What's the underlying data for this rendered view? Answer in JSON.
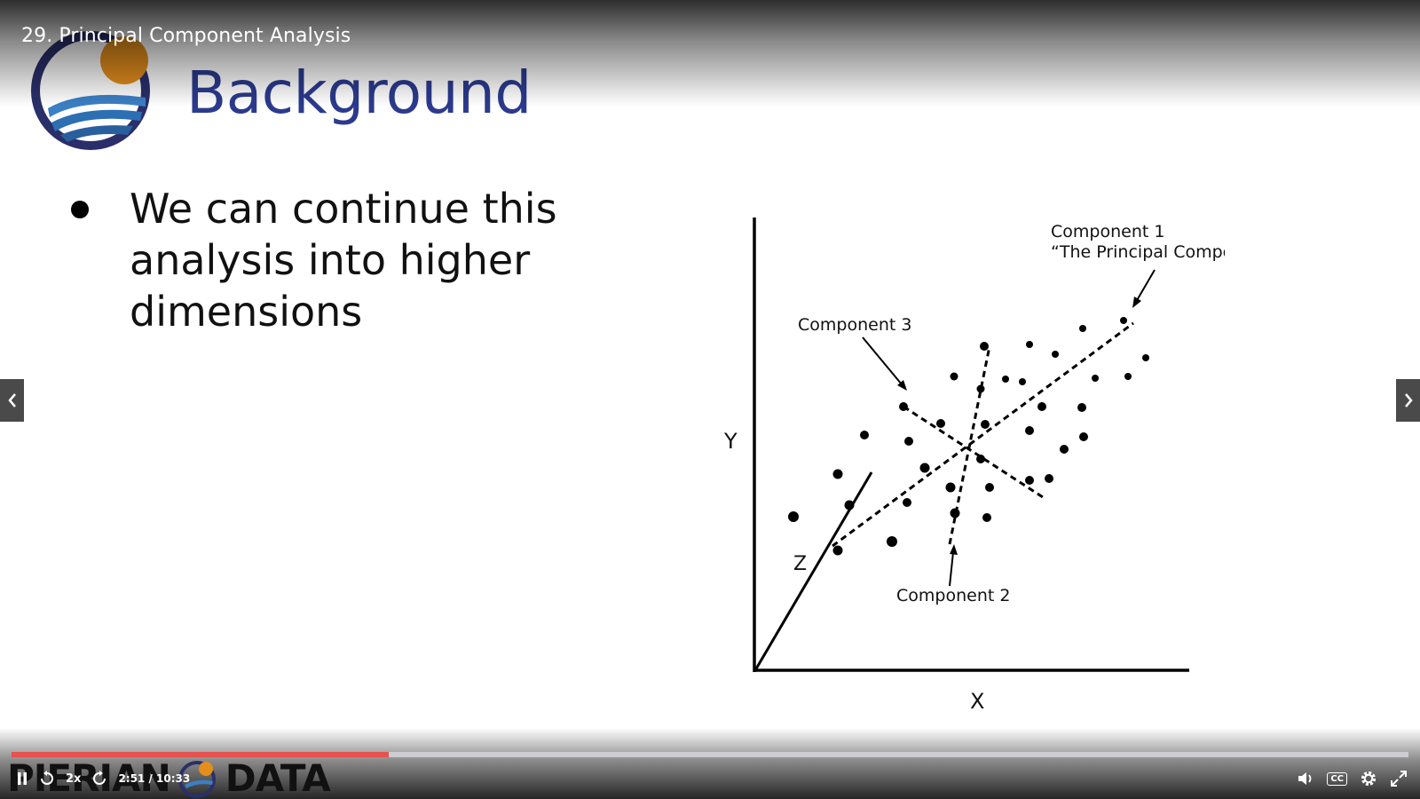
{
  "player": {
    "lecture_title": "29. Principal Component Analysis",
    "speed": "2x",
    "time_current": "2:51",
    "time_total": "10:33",
    "progress_fraction": 0.27,
    "captions_label": "CC",
    "icons": {
      "play_pause": "pause-icon",
      "rewind": "rewind-icon",
      "forward": "forward-icon",
      "volume": "volume-icon",
      "settings": "gear-icon",
      "fullscreen": "fullscreen-icon",
      "prev": "chevron-left-icon",
      "next": "chevron-right-icon"
    },
    "colors": {
      "progress": "#e5524f",
      "track": "#d2d2d7"
    }
  },
  "slide": {
    "title": "Background",
    "bullets": [
      {
        "lines": [
          "We can continue this",
          "analysis into higher",
          "dimensions"
        ]
      }
    ],
    "title_color": "#2c3a8e"
  },
  "diagram": {
    "axis_x": "X",
    "axis_y": "Y",
    "axis_z": "Z",
    "component1_line1": "Component 1",
    "component1_line2": "“The Principal Component”",
    "component2": "Component 2",
    "component3": "Component 3"
  },
  "watermark": {
    "left": "PIERIAN",
    "right": "DATA"
  }
}
